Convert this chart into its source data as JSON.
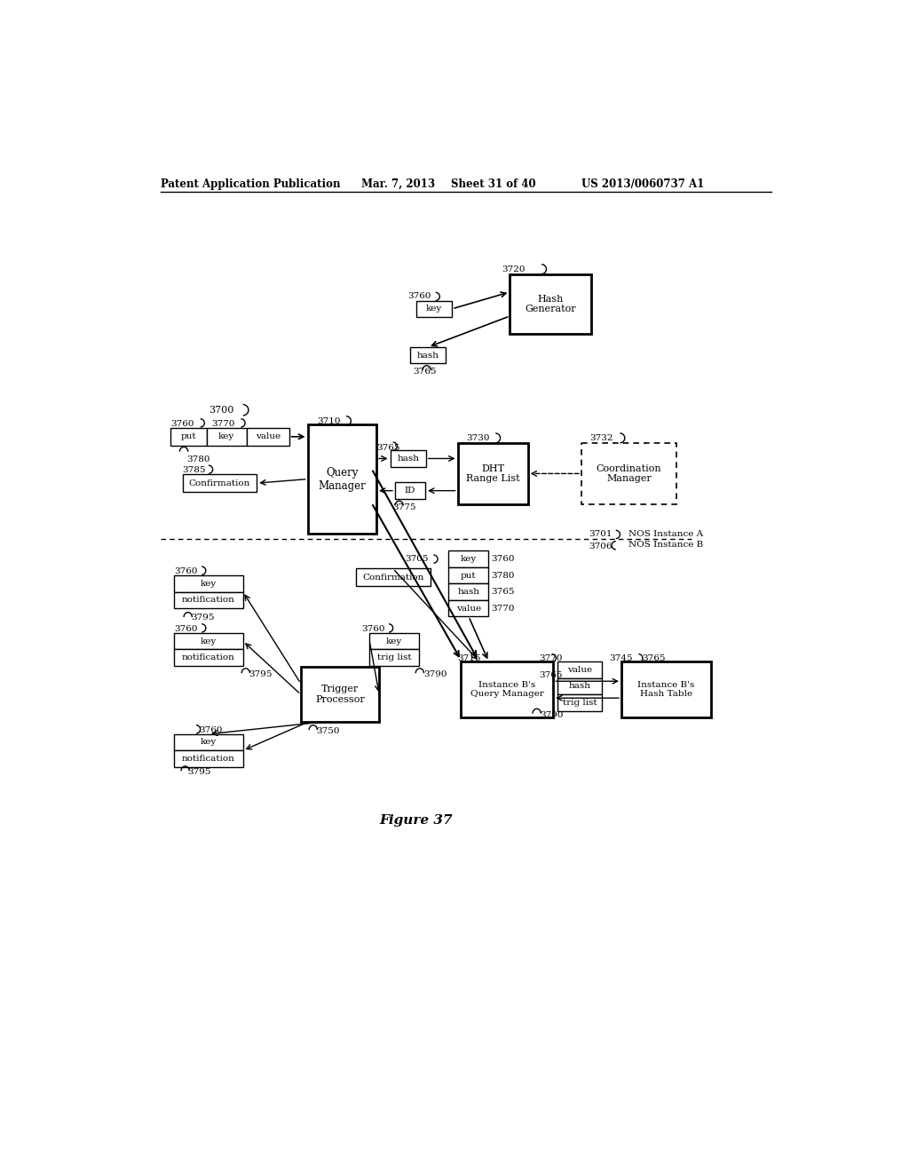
{
  "bg_color": "#ffffff",
  "header1": "Patent Application Publication",
  "header2": "Mar. 7, 2013",
  "header3": "Sheet 31 of 40",
  "header4": "US 2013/0060737 A1",
  "figure_label": "Figure 37"
}
